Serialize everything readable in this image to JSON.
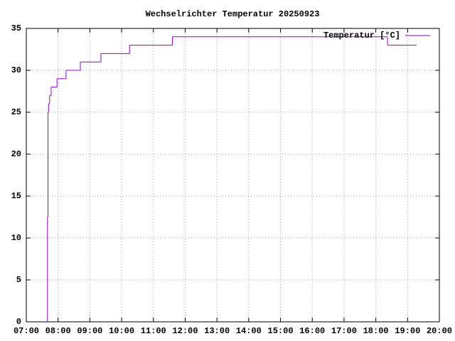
{
  "chart_data": {
    "type": "line",
    "title": "Wechselrichter Temperatur 20250923",
    "x": [
      "07:40",
      "07:40",
      "07:41",
      "07:42",
      "07:44",
      "07:47",
      "07:58",
      "08:15",
      "08:42",
      "09:21",
      "10:15",
      "11:36",
      "18:22",
      "19:16"
    ],
    "series": [
      {
        "name": "Temperatur [°C]",
        "color": "#9400d3",
        "values": [
          0,
          12.5,
          25,
          26,
          27,
          28,
          29,
          30,
          31,
          32,
          33,
          34,
          33,
          33
        ]
      }
    ],
    "step": true,
    "xlim": [
      "07:00",
      "20:00"
    ],
    "xticks": [
      "07:00",
      "08:00",
      "09:00",
      "10:00",
      "11:00",
      "12:00",
      "13:00",
      "14:00",
      "15:00",
      "16:00",
      "17:00",
      "18:00",
      "19:00",
      "20:00"
    ],
    "ylim": [
      0,
      35
    ],
    "yticks": [
      0,
      5,
      10,
      15,
      20,
      25,
      30,
      35
    ],
    "grid": true,
    "legend": "top-right"
  }
}
